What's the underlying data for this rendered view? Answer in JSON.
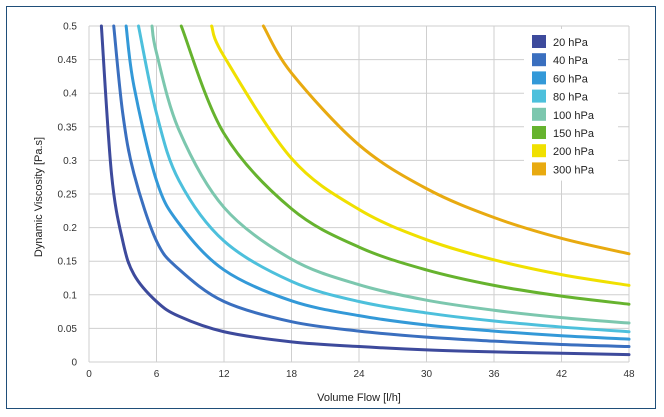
{
  "chart_data": {
    "type": "line",
    "xlabel": "Volume Flow [l/h]",
    "ylabel": "Dynamic Viscosity [Pa.s]",
    "xlim": [
      0,
      48
    ],
    "ylim": [
      0,
      0.5
    ],
    "x_ticks": [
      "0",
      "6",
      "12",
      "18",
      "24",
      "30",
      "36",
      "42",
      "48"
    ],
    "y_ticks": [
      "0",
      "0.05",
      "0.1",
      "0.15",
      "0.2",
      "0.25",
      "0.3",
      "0.35",
      "0.4",
      "0.45",
      "0.5"
    ],
    "grid": true,
    "legend_position": "top-right",
    "series": [
      {
        "name": "20 hPa",
        "color": "#3d4a9c",
        "x": [
          1.1,
          2,
          3,
          4,
          6,
          8,
          12,
          18,
          24,
          30,
          36,
          42,
          48
        ],
        "y": [
          0.5,
          0.28,
          0.18,
          0.13,
          0.09,
          0.068,
          0.045,
          0.03,
          0.023,
          0.018,
          0.015,
          0.013,
          0.011
        ]
      },
      {
        "name": "40 hPa",
        "color": "#3a6fbf",
        "x": [
          2.2,
          3,
          4,
          6,
          8,
          12,
          18,
          24,
          30,
          36,
          42,
          48
        ],
        "y": [
          0.5,
          0.37,
          0.28,
          0.18,
          0.138,
          0.09,
          0.06,
          0.046,
          0.037,
          0.031,
          0.026,
          0.023
        ]
      },
      {
        "name": "60 hPa",
        "color": "#3399d8",
        "x": [
          3.3,
          4,
          6,
          8,
          12,
          18,
          24,
          30,
          36,
          42,
          48
        ],
        "y": [
          0.5,
          0.41,
          0.27,
          0.206,
          0.137,
          0.091,
          0.069,
          0.055,
          0.046,
          0.039,
          0.034
        ]
      },
      {
        "name": "80 hPa",
        "color": "#4dc0dc",
        "x": [
          4.4,
          6,
          8,
          12,
          18,
          24,
          30,
          36,
          42,
          48
        ],
        "y": [
          0.5,
          0.37,
          0.27,
          0.18,
          0.12,
          0.09,
          0.073,
          0.061,
          0.052,
          0.045
        ]
      },
      {
        "name": "100 hPa",
        "color": "#7cc7ae",
        "x": [
          5.6,
          6,
          8,
          12,
          18,
          24,
          30,
          36,
          42,
          48
        ],
        "y": [
          0.5,
          0.46,
          0.345,
          0.23,
          0.153,
          0.115,
          0.092,
          0.077,
          0.066,
          0.058
        ]
      },
      {
        "name": "150 hPa",
        "color": "#66b32e",
        "x": [
          8.2,
          12,
          18,
          24,
          30,
          36,
          42,
          48
        ],
        "y": [
          0.5,
          0.34,
          0.228,
          0.171,
          0.137,
          0.114,
          0.098,
          0.086
        ]
      },
      {
        "name": "200 hPa",
        "color": "#f0e000",
        "x": [
          10.9,
          12,
          18,
          24,
          30,
          36,
          42,
          48
        ],
        "y": [
          0.5,
          0.455,
          0.303,
          0.227,
          0.182,
          0.152,
          0.13,
          0.114
        ]
      },
      {
        "name": "300 hPa",
        "color": "#e8aa10",
        "x": [
          15.5,
          18,
          24,
          30,
          36,
          42,
          48
        ],
        "y": [
          0.5,
          0.43,
          0.323,
          0.258,
          0.215,
          0.184,
          0.161
        ]
      }
    ]
  }
}
